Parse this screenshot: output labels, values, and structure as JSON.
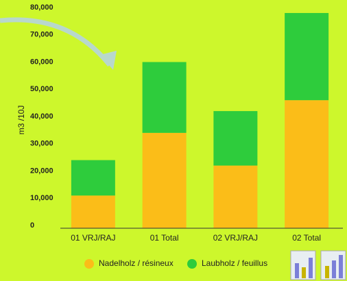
{
  "chart_data": {
    "type": "stacked_bar",
    "categories": [
      "01 VRJ/RAJ",
      "01 Total",
      "02 VRJ/RAJ",
      "02 Total"
    ],
    "series": [
      {
        "name": "Nadelholz / résineux",
        "color": "#fbbd18",
        "values": [
          12000,
          35000,
          23000,
          47000
        ]
      },
      {
        "name": "Laubholz / feuillus",
        "color": "#2ecc3c",
        "values": [
          13000,
          26000,
          20000,
          32000
        ]
      }
    ],
    "y_label": "m3 /10J",
    "ylim": [
      0,
      80000
    ],
    "yticks": [
      0,
      {
        "value": 10000,
        "label": "10,000"
      },
      {
        "value": 20000,
        "label": "20,000"
      },
      {
        "value": 30000,
        "label": "30,000"
      },
      {
        "value": 40000,
        "label": "40,000"
      },
      {
        "value": 50000,
        "label": "50,000"
      },
      {
        "value": 60000,
        "label": "60,000"
      },
      {
        "value": 70000,
        "label": "70,000"
      },
      {
        "value": 80000,
        "label": "80,000"
      }
    ],
    "grid": false,
    "legend": "bottom"
  }
}
